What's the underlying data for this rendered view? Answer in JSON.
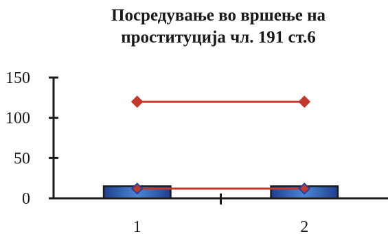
{
  "chart_data": {
    "type": "bar",
    "title_lines": [
      "Посредување во вршење на",
      "проституција чл. 191 ст.6"
    ],
    "categories": [
      "1",
      "2"
    ],
    "y_ticks": [
      "0",
      "50",
      "100",
      "150"
    ],
    "ylim": [
      0,
      150
    ],
    "xlabel": "",
    "ylabel": "",
    "legend": "none",
    "grid": false,
    "series": [
      {
        "type": "bar",
        "values": [
          15,
          15
        ],
        "color": "#3a6fc4"
      },
      {
        "type": "line",
        "values": [
          120,
          120
        ],
        "color": "#c0392b",
        "marker": "diamond"
      },
      {
        "type": "line",
        "values": [
          12,
          12
        ],
        "color": "#c0392b",
        "marker": "diamond",
        "marker_color": "#2a3f9e"
      }
    ]
  }
}
